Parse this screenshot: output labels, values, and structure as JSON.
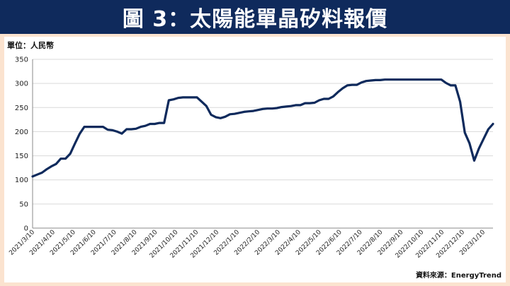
{
  "header": {
    "title": "圖 3：太陽能單晶矽料報價"
  },
  "unit_label": "單位：人民幣",
  "source_label": "資料來源：EnergyTrend",
  "chart_data": {
    "type": "line",
    "ylim": [
      0,
      350
    ],
    "yticks": [
      0,
      50,
      100,
      150,
      200,
      250,
      300,
      350
    ],
    "grid": "horizontal",
    "categories": [
      "2021/3/10",
      "2021/4/10",
      "2021/5/10",
      "2021/6/10",
      "2021/7/10",
      "2021/8/10",
      "2021/9/10",
      "2021/10/10",
      "2021/11/10",
      "2021/12/10",
      "2022/1/10",
      "2022/2/10",
      "2022/3/10",
      "2022/4/10",
      "2022/5/10",
      "2022/6/10",
      "2022/7/10",
      "2022/8/10",
      "2022/9/10",
      "2022/10/10",
      "2022/11/10",
      "2022/12/10",
      "2023/1/10"
    ],
    "series": [
      {
        "color": "#0f2a5c",
        "x": [
          0,
          0.25,
          0.5,
          0.75,
          1,
          1.25,
          1.5,
          1.75,
          2,
          2.25,
          2.5,
          2.75,
          3,
          3.25,
          3.5,
          3.75,
          4,
          4.25,
          4.5,
          4.75,
          5,
          5.25,
          5.5,
          5.75,
          6,
          6.25,
          6.5,
          6.75,
          7,
          7.25,
          7.5,
          7.75,
          8,
          8.25,
          8.5,
          8.75,
          9,
          9.25,
          9.5,
          9.75,
          10,
          10.25,
          10.5,
          10.75,
          11,
          11.25,
          11.5,
          11.75,
          12,
          12.25,
          12.5,
          12.75,
          13,
          13.25,
          13.5,
          13.75,
          14,
          14.25,
          14.5,
          14.75,
          15,
          15.25,
          15.5,
          15.75,
          16,
          16.25,
          16.5,
          16.75,
          17,
          17.25,
          17.5,
          17.75,
          18,
          18.25,
          18.5,
          18.75,
          19,
          19.25,
          19.5,
          19.75,
          20,
          20.25,
          20.5,
          20.75,
          21,
          21.25,
          21.5,
          21.75,
          22,
          22.25,
          22.5,
          22.75,
          23,
          23.25,
          23.5,
          23.75,
          24,
          24.25,
          24.5,
          24.75,
          25,
          25.25,
          25.5,
          25.75,
          26,
          26.25,
          26.5,
          26.75,
          27,
          27.25,
          27.5,
          27.75,
          28,
          28.25,
          28.5,
          28.75,
          29,
          29.25,
          29.5,
          29.75,
          30,
          30.25,
          30.5,
          30.75,
          31,
          31.25,
          31.5,
          31.75,
          32,
          32.25,
          32.5,
          32.75,
          33,
          33.25,
          33.5,
          33.75,
          34,
          34.25,
          34.5,
          34.75,
          35,
          35.25,
          35.5,
          35.75,
          36,
          36.25,
          36.5,
          36.75,
          37,
          37.25,
          37.5,
          37.75,
          38,
          38.25,
          38.5,
          38.75,
          39,
          39.25,
          39.5,
          39.75,
          40,
          40.25,
          40.5,
          40.75,
          41,
          41.25,
          41.5,
          41.75,
          42,
          42.25,
          42.5,
          42.75,
          43,
          43.25,
          43.5,
          43.75,
          44,
          44.25,
          44.5,
          44.75,
          45,
          45.25,
          45.5,
          45.75,
          46,
          46.25,
          46.5,
          46.75,
          47,
          47.25,
          47.5,
          47.75,
          48,
          48.25,
          48.5,
          48.75,
          49,
          49.25,
          49.5,
          49.75,
          50,
          50.25,
          50.5,
          50.75,
          51,
          51.25,
          51.5,
          51.75,
          52,
          52.25,
          52.5,
          52.75,
          53,
          53.25,
          53.5,
          53.75,
          54,
          54.25,
          54.5,
          54.75,
          55,
          55.25,
          55.5,
          55.75,
          56,
          56.25,
          56.5,
          56.75,
          57,
          57.25,
          57.5,
          57.75,
          58,
          58.25,
          58.5,
          58.75,
          59,
          59.25,
          59.5,
          59.75,
          60,
          60.25,
          60.5,
          60.75,
          61,
          61.25,
          61.5,
          61.75,
          62,
          62.25,
          62.5,
          62.75,
          63,
          63.25,
          63.5,
          63.75,
          64,
          64.25,
          64.5,
          64.75,
          65,
          65.25,
          65.5,
          65.75,
          66,
          66.25,
          66.5,
          66.75,
          67,
          67.25,
          67.5,
          67.75,
          68,
          68.25,
          68.5,
          68.75,
          69,
          69.25,
          69.5,
          69.75,
          70,
          70.25,
          70.5,
          70.75,
          71,
          71.25,
          71.5,
          71.75,
          72,
          72.25,
          72.5,
          72.75,
          73,
          73.25,
          73.5,
          73.75,
          74,
          74.25,
          74.5,
          74.75,
          75,
          75.25,
          75.5,
          75.75,
          76,
          76.25,
          76.5,
          76.75,
          77,
          77.25,
          77.5,
          77.75,
          78,
          78.25,
          78.5,
          78.75,
          79,
          79.25,
          79.5,
          79.75,
          80,
          80.25,
          80.5,
          80.75,
          81,
          81.25,
          81.5,
          81.75,
          82,
          82.25,
          82.5,
          82.75,
          83,
          83.25,
          83.5,
          83.75,
          84,
          84.25,
          84.5,
          84.75,
          85,
          85.25,
          85.5,
          85.75,
          86,
          86.25,
          86.5,
          86.75,
          87,
          87.25,
          87.5,
          87.75,
          88,
          88.25,
          88.5,
          88.75,
          89,
          89.25,
          89.5,
          89.75,
          90,
          90.25,
          90.5,
          90.75,
          91,
          91.25,
          91.5,
          91.75,
          92,
          92.25,
          92.5,
          92.75,
          93,
          93.25,
          93.5,
          93.75,
          94,
          94.25,
          94.5,
          94.75,
          95,
          95.25,
          95.5,
          95.75,
          96,
          96.25,
          96.5,
          96.75,
          97,
          97.25,
          97.5,
          97.75,
          98,
          98.25,
          98.5,
          98.75,
          99,
          99.25,
          99.5,
          99.75,
          100
        ],
        "values_sparse": [
          [
            0,
            107
          ],
          [
            1,
            111
          ],
          [
            2,
            115
          ],
          [
            3,
            122
          ],
          [
            4,
            128
          ],
          [
            5,
            133
          ],
          [
            6,
            144
          ],
          [
            7,
            144
          ],
          [
            8,
            154
          ],
          [
            9,
            175
          ],
          [
            10,
            195
          ],
          [
            11,
            210
          ],
          [
            12,
            210
          ],
          [
            13,
            210
          ],
          [
            14,
            210
          ],
          [
            15,
            210
          ],
          [
            16,
            204
          ],
          [
            17,
            203
          ],
          [
            18,
            200
          ],
          [
            19,
            196
          ],
          [
            20,
            205
          ],
          [
            21,
            205
          ],
          [
            22,
            206
          ],
          [
            23,
            210
          ],
          [
            24,
            212
          ],
          [
            25,
            216
          ],
          [
            26,
            216
          ],
          [
            27,
            218
          ],
          [
            28,
            218
          ],
          [
            29,
            265
          ],
          [
            30,
            267
          ],
          [
            31,
            270
          ],
          [
            32,
            271
          ],
          [
            33,
            271
          ],
          [
            34,
            271
          ],
          [
            35,
            271
          ],
          [
            36,
            262
          ],
          [
            37,
            253
          ],
          [
            38,
            235
          ],
          [
            39,
            230
          ],
          [
            40,
            228
          ],
          [
            41,
            231
          ],
          [
            42,
            236
          ],
          [
            43,
            237
          ],
          [
            44,
            239
          ],
          [
            45,
            241
          ],
          [
            46,
            242
          ],
          [
            47,
            243
          ],
          [
            48,
            245
          ],
          [
            49,
            247
          ],
          [
            50,
            248
          ],
          [
            51,
            248
          ],
          [
            52,
            249
          ],
          [
            53,
            251
          ],
          [
            54,
            252
          ],
          [
            55,
            253
          ],
          [
            56,
            255
          ],
          [
            57,
            255
          ],
          [
            58,
            259
          ],
          [
            59,
            259
          ],
          [
            60,
            260
          ],
          [
            61,
            265
          ],
          [
            62,
            268
          ],
          [
            63,
            268
          ],
          [
            64,
            273
          ],
          [
            65,
            282
          ],
          [
            66,
            290
          ],
          [
            67,
            296
          ],
          [
            68,
            297
          ],
          [
            69,
            297
          ],
          [
            70,
            302
          ],
          [
            71,
            305
          ],
          [
            72,
            306
          ],
          [
            73,
            307
          ],
          [
            74,
            307
          ],
          [
            75,
            308
          ],
          [
            76,
            308
          ],
          [
            77,
            308
          ],
          [
            78,
            308
          ],
          [
            79,
            308
          ],
          [
            80,
            308
          ],
          [
            81,
            308
          ],
          [
            82,
            308
          ],
          [
            83,
            308
          ],
          [
            84,
            308
          ],
          [
            85,
            308
          ],
          [
            86,
            308
          ],
          [
            87,
            308
          ],
          [
            88,
            301
          ],
          [
            89,
            296
          ],
          [
            90,
            296
          ],
          [
            91,
            262
          ],
          [
            92,
            198
          ],
          [
            93,
            176
          ],
          [
            94,
            140
          ],
          [
            95,
            165
          ],
          [
            96,
            185
          ],
          [
            97,
            205
          ],
          [
            98,
            216
          ]
        ]
      }
    ]
  }
}
